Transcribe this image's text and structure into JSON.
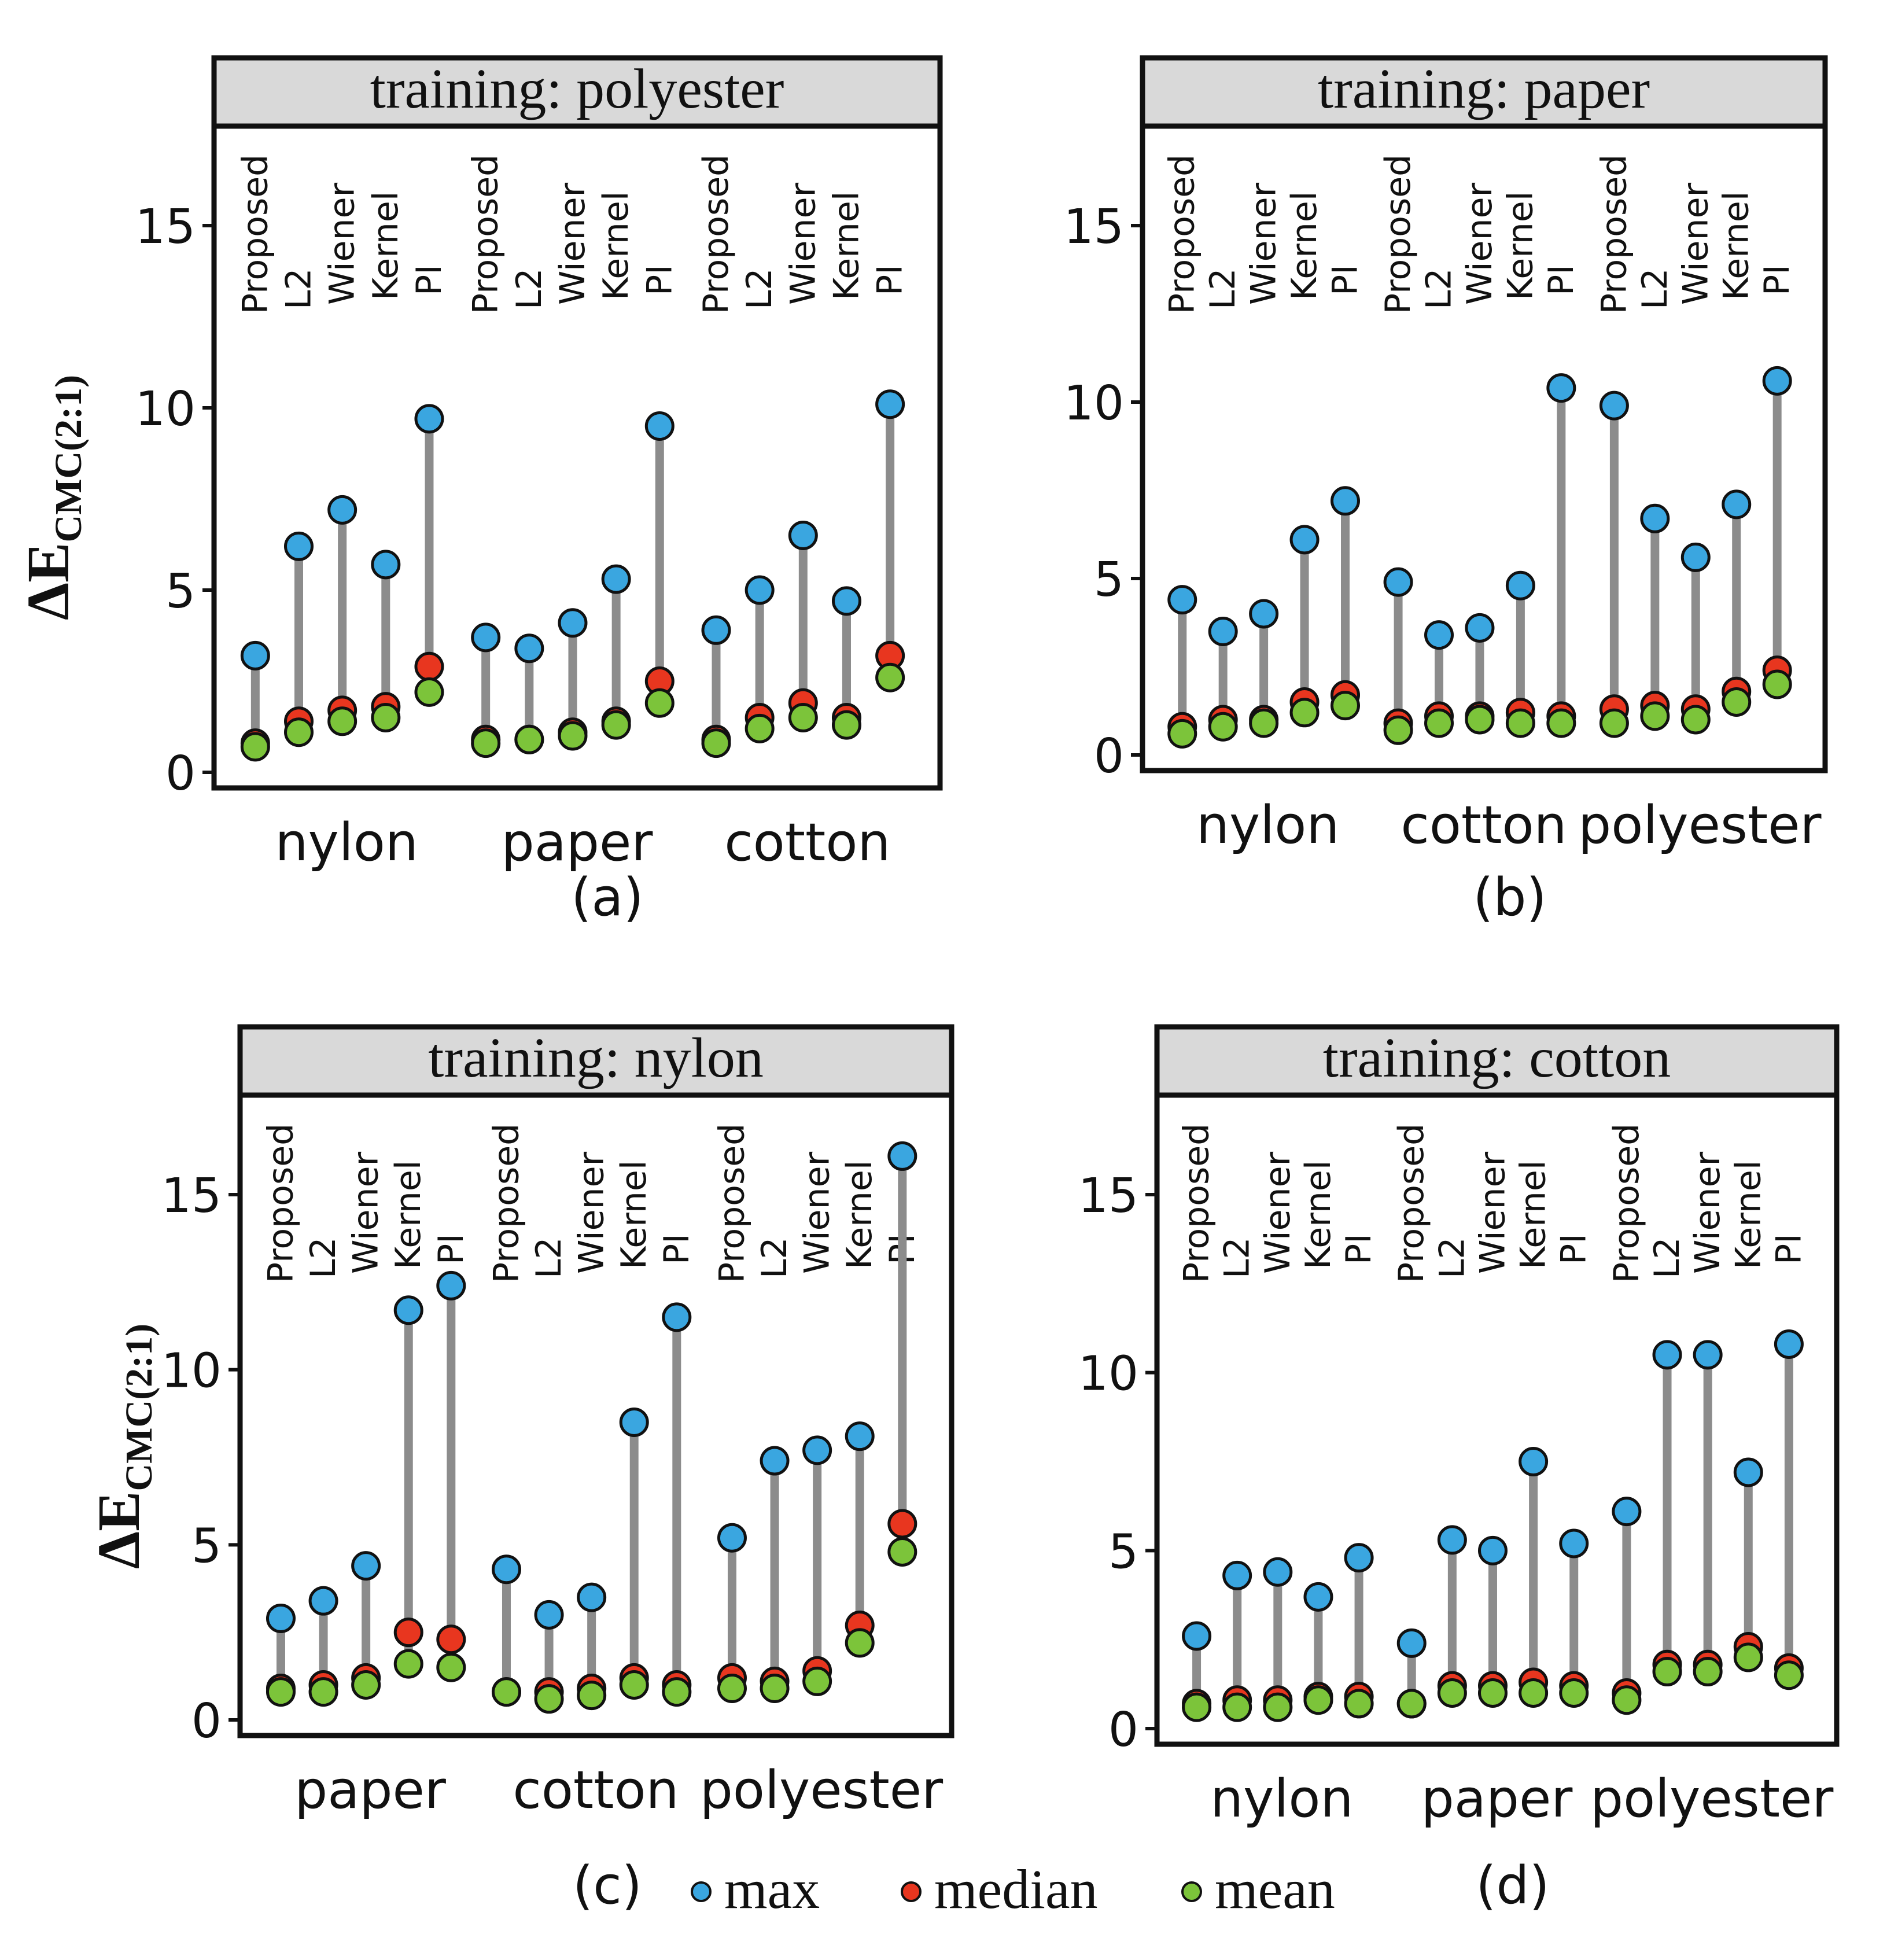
{
  "colors": {
    "max": "#3aa6e0",
    "median": "#e8361f",
    "mean": "#7cc43a",
    "stem": "#8c8c8c",
    "header_fill": "#d9d9d9",
    "frame": "#111111"
  },
  "ylabel": {
    "main": "ΔE",
    "sub": "CMC(2:1)"
  },
  "legend": [
    {
      "key": "max",
      "label": "max"
    },
    {
      "key": "median",
      "label": "median"
    },
    {
      "key": "mean",
      "label": "mean"
    }
  ],
  "chart_data": [
    {
      "type": "scatter",
      "panel_label": "(a)",
      "title": "training: polyester",
      "methods": [
        "Proposed",
        "L2",
        "Wiener",
        "Kernel",
        "PI"
      ],
      "groups": [
        "nylon",
        "paper",
        "cotton"
      ],
      "ylim": [
        0,
        17.5
      ],
      "yticks": [
        0,
        5,
        10,
        15
      ],
      "series": [
        {
          "name": "max",
          "values": [
            [
              3.2,
              6.2,
              7.2,
              5.7,
              9.7
            ],
            [
              3.7,
              3.4,
              4.1,
              5.3,
              9.5
            ],
            [
              3.9,
              5.0,
              6.5,
              4.7,
              10.1
            ]
          ]
        },
        {
          "name": "median",
          "values": [
            [
              0.8,
              1.4,
              1.7,
              1.8,
              2.9
            ],
            [
              0.9,
              0.9,
              1.1,
              1.4,
              2.5
            ],
            [
              0.9,
              1.5,
              1.9,
              1.5,
              3.2
            ]
          ]
        },
        {
          "name": "mean",
          "values": [
            [
              0.7,
              1.1,
              1.4,
              1.5,
              2.2
            ],
            [
              0.8,
              0.9,
              1.0,
              1.3,
              1.9
            ],
            [
              0.8,
              1.2,
              1.5,
              1.3,
              2.6
            ]
          ]
        }
      ]
    },
    {
      "type": "scatter",
      "panel_label": "(b)",
      "title": "training: paper",
      "methods": [
        "Proposed",
        "L2",
        "Wiener",
        "Kernel",
        "PI"
      ],
      "groups": [
        "nylon",
        "cotton",
        "polyester"
      ],
      "ylim": [
        0,
        17.5
      ],
      "yticks": [
        0,
        5,
        10,
        15
      ],
      "series": [
        {
          "name": "max",
          "values": [
            [
              4.4,
              3.5,
              4.0,
              6.1,
              7.2
            ],
            [
              4.9,
              3.4,
              3.6,
              4.8,
              10.4
            ],
            [
              9.9,
              6.7,
              5.6,
              7.1,
              10.6
            ]
          ]
        },
        {
          "name": "median",
          "values": [
            [
              0.8,
              1.0,
              1.0,
              1.5,
              1.7
            ],
            [
              0.9,
              1.1,
              1.1,
              1.2,
              1.1
            ],
            [
              1.3,
              1.4,
              1.3,
              1.8,
              2.4
            ]
          ]
        },
        {
          "name": "mean",
          "values": [
            [
              0.6,
              0.8,
              0.9,
              1.2,
              1.4
            ],
            [
              0.7,
              0.9,
              1.0,
              0.9,
              0.9
            ],
            [
              0.9,
              1.1,
              1.0,
              1.5,
              2.0
            ]
          ]
        }
      ]
    },
    {
      "type": "scatter",
      "panel_label": "(c)",
      "title": "training: nylon",
      "methods": [
        "Proposed",
        "L2",
        "Wiener",
        "Kernel",
        "PI"
      ],
      "groups": [
        "paper",
        "cotton",
        "polyester"
      ],
      "ylim": [
        0,
        17.5
      ],
      "yticks": [
        0,
        5,
        10,
        15
      ],
      "series": [
        {
          "name": "max",
          "values": [
            [
              2.9,
              3.4,
              4.4,
              11.7,
              12.4
            ],
            [
              4.3,
              3.0,
              3.5,
              8.5,
              11.5
            ],
            [
              5.2,
              7.4,
              7.7,
              8.1,
              16.1
            ]
          ]
        },
        {
          "name": "median",
          "values": [
            [
              0.9,
              1.0,
              1.2,
              2.5,
              2.3
            ],
            [
              0.8,
              0.8,
              0.9,
              1.2,
              1.0
            ],
            [
              1.2,
              1.1,
              1.4,
              2.7,
              5.6
            ]
          ]
        },
        {
          "name": "mean",
          "values": [
            [
              0.8,
              0.8,
              1.0,
              1.6,
              1.5
            ],
            [
              0.8,
              0.6,
              0.7,
              1.0,
              0.8
            ],
            [
              0.9,
              0.9,
              1.1,
              2.2,
              4.8
            ]
          ]
        }
      ]
    },
    {
      "type": "scatter",
      "panel_label": "(d)",
      "title": "training: cotton",
      "methods": [
        "Proposed",
        "L2",
        "Wiener",
        "Kernel",
        "PI"
      ],
      "groups": [
        "nylon",
        "paper",
        "polyester"
      ],
      "ylim": [
        0,
        17.5
      ],
      "yticks": [
        0,
        5,
        10,
        15
      ],
      "series": [
        {
          "name": "max",
          "values": [
            [
              2.6,
              4.3,
              4.4,
              3.7,
              4.8
            ],
            [
              2.4,
              5.3,
              5.0,
              7.5,
              5.2
            ],
            [
              6.1,
              10.5,
              10.5,
              7.2,
              10.8
            ]
          ]
        },
        {
          "name": "median",
          "values": [
            [
              0.7,
              0.8,
              0.8,
              0.9,
              0.9
            ],
            [
              0.7,
              1.2,
              1.2,
              1.3,
              1.2
            ],
            [
              1.0,
              1.8,
              1.8,
              2.3,
              1.7
            ]
          ]
        },
        {
          "name": "mean",
          "values": [
            [
              0.6,
              0.6,
              0.6,
              0.8,
              0.7
            ],
            [
              0.7,
              1.0,
              1.0,
              1.0,
              1.0
            ],
            [
              0.8,
              1.6,
              1.6,
              2.0,
              1.5
            ]
          ]
        }
      ]
    }
  ]
}
